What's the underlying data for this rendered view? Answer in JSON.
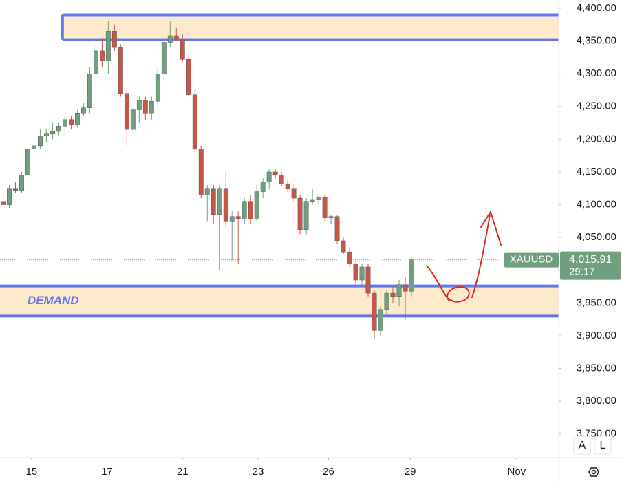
{
  "chart_data": {
    "type": "candlestick",
    "symbol": "XAUUSD",
    "countdown": "29:17",
    "last_price": {
      "value": 4015.91,
      "label": "4,015.91"
    },
    "up_color": "#6f9f7f",
    "down_color": "#c4574a",
    "zone_fill": "#fde9cc",
    "zone_border": "#6179ef",
    "open": [
      4105,
      4100,
      4125,
      4122,
      4145,
      4185,
      4190,
      4205,
      4208,
      4212,
      4220,
      4230,
      4222,
      4240,
      4248,
      4300,
      4335,
      4320,
      4365,
      4340,
      4270,
      4215,
      4245,
      4260,
      4240,
      4258,
      4300,
      4348,
      4358,
      4353,
      4322,
      4268,
      4185,
      4115,
      4125,
      4085,
      4125,
      4075,
      4082,
      4078,
      4105,
      4078,
      4120,
      4135,
      4150,
      4145,
      4132,
      4125,
      4110,
      4062,
      4105,
      4108,
      4112,
      4080,
      4082,
      4045,
      4028,
      4010,
      3985,
      4005,
      3965,
      3908,
      3940,
      3965,
      3960,
      3978,
      3968
    ],
    "high": [
      4115,
      4130,
      4135,
      4150,
      4190,
      4195,
      4215,
      4215,
      4225,
      4225,
      4235,
      4235,
      4245,
      4255,
      4310,
      4345,
      4355,
      4380,
      4375,
      4345,
      4280,
      4250,
      4265,
      4265,
      4265,
      4310,
      4355,
      4380,
      4370,
      4360,
      4330,
      4275,
      4190,
      4130,
      4130,
      4130,
      4150,
      4090,
      4090,
      4110,
      4115,
      4130,
      4140,
      4155,
      4155,
      4150,
      4138,
      4130,
      4115,
      4110,
      4125,
      4115,
      4115,
      4085,
      4085,
      4050,
      4035,
      4015,
      4010,
      4010,
      3970,
      3945,
      3970,
      3975,
      3985,
      3990,
      4020
    ],
    "low": [
      4090,
      4095,
      4118,
      4118,
      4140,
      4178,
      4185,
      4195,
      4200,
      4205,
      4205,
      4215,
      4218,
      4235,
      4240,
      4275,
      4310,
      4300,
      4335,
      4265,
      4190,
      4210,
      4225,
      4230,
      4230,
      4250,
      4290,
      4340,
      4350,
      4318,
      4265,
      4180,
      4110,
      4075,
      4070,
      4000,
      4065,
      4015,
      4010,
      4070,
      4070,
      4075,
      4110,
      4125,
      4140,
      4128,
      4120,
      4105,
      4055,
      4055,
      4100,
      4100,
      4075,
      4070,
      4040,
      4025,
      4005,
      3975,
      3975,
      3960,
      3895,
      3900,
      3930,
      3950,
      3945,
      3925,
      3960
    ],
    "close": [
      4100,
      4125,
      4122,
      4145,
      4185,
      4190,
      4205,
      4208,
      4212,
      4220,
      4230,
      4222,
      4240,
      4248,
      4300,
      4335,
      4320,
      4365,
      4340,
      4270,
      4215,
      4245,
      4260,
      4240,
      4258,
      4300,
      4348,
      4358,
      4353,
      4322,
      4268,
      4185,
      4115,
      4125,
      4085,
      4125,
      4075,
      4082,
      4078,
      4105,
      4078,
      4120,
      4135,
      4150,
      4145,
      4132,
      4125,
      4110,
      4062,
      4105,
      4108,
      4112,
      4080,
      4082,
      4045,
      4028,
      4010,
      3985,
      4005,
      3965,
      3908,
      3940,
      3965,
      3960,
      3978,
      3968,
      4015.91
    ],
    "xlim": [
      -0.5,
      89.8
    ],
    "xticks": [
      {
        "value": 4.6,
        "label": "15"
      },
      {
        "value": 16.8,
        "label": "17"
      },
      {
        "value": 29,
        "label": "21"
      },
      {
        "value": 41.2,
        "label": "23"
      },
      {
        "value": 52.6,
        "label": "26"
      },
      {
        "value": 65.8,
        "label": "29"
      },
      {
        "value": 83,
        "label": "Nov"
      }
    ],
    "ylim": [
      3714,
      4412.6
    ],
    "yticks": [
      {
        "value": 3750,
        "label": "3,750.00"
      },
      {
        "value": 3800,
        "label": "3,800.00"
      },
      {
        "value": 3850,
        "label": "3,850.00"
      },
      {
        "value": 3900,
        "label": "3,900.00"
      },
      {
        "value": 3950,
        "label": "3,950.00"
      },
      {
        "value": 4000,
        "label": "4,000.00"
      },
      {
        "value": 4050,
        "label": "4,050.00"
      },
      {
        "value": 4100,
        "label": "4,100.00"
      },
      {
        "value": 4150,
        "label": "4,150.00"
      },
      {
        "value": 4200,
        "label": "4,200.00"
      },
      {
        "value": 4250,
        "label": "4,250.00"
      },
      {
        "value": 4300,
        "label": "4,300.00"
      },
      {
        "value": 4350,
        "label": "4,350.00"
      },
      {
        "value": 4400,
        "label": "4,400.00"
      }
    ],
    "zones": [
      {
        "top": 4390,
        "bottom": 4352,
        "x_start": 9.6
      },
      {
        "label": "DEMAND",
        "top": 3976,
        "bottom": 3930,
        "x_start": -0.5
      }
    ],
    "buttons": [
      "A",
      "L"
    ]
  }
}
